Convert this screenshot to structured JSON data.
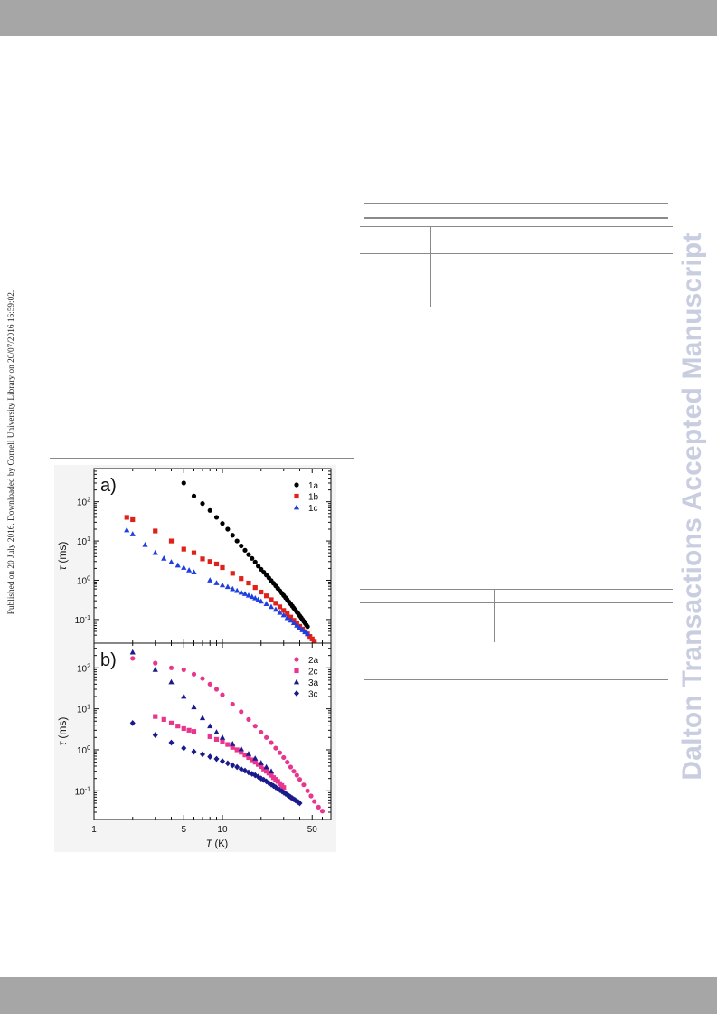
{
  "sidebar_text": "Published on 20 July 2016. Downloaded by Cornell University Library on 20/07/2016 16:59:02.",
  "watermark": "Dalton Transactions Accepted Manuscript",
  "chart_data": [
    {
      "type": "scatter",
      "panel_label": "a)",
      "xlabel": "T (K)",
      "ylabel": "τ (ms)",
      "x_scale": "log",
      "y_scale": "log",
      "xlim": [
        1,
        70
      ],
      "ylim": [
        0.025,
        700
      ],
      "x_ticks": [
        "1",
        "5",
        "10",
        "50"
      ],
      "y_ticks": [
        "10-1",
        "100",
        "101",
        "102"
      ],
      "legend_position": "top-right",
      "series": [
        {
          "name": "1a",
          "color": "#000000",
          "marker": "circle",
          "points": [
            [
              5,
              300
            ],
            [
              6,
              140
            ],
            [
              7,
              90
            ],
            [
              8,
              60
            ],
            [
              9,
              40
            ],
            [
              10,
              28
            ],
            [
              11,
              20
            ],
            [
              12,
              14
            ],
            [
              13,
              10
            ],
            [
              14,
              7.5
            ],
            [
              15,
              5.8
            ],
            [
              16,
              4.5
            ],
            [
              17,
              3.6
            ],
            [
              18,
              2.9
            ],
            [
              19,
              2.3
            ],
            [
              20,
              1.9
            ],
            [
              21,
              1.6
            ],
            [
              22,
              1.35
            ],
            [
              23,
              1.15
            ],
            [
              24,
              0.98
            ],
            [
              25,
              0.84
            ],
            [
              26,
              0.72
            ],
            [
              27,
              0.62
            ],
            [
              28,
              0.54
            ],
            [
              29,
              0.47
            ],
            [
              30,
              0.41
            ],
            [
              31,
              0.36
            ],
            [
              32,
              0.32
            ],
            [
              33,
              0.28
            ],
            [
              34,
              0.25
            ],
            [
              35,
              0.22
            ],
            [
              36,
              0.195
            ],
            [
              37,
              0.175
            ],
            [
              38,
              0.155
            ],
            [
              39,
              0.14
            ],
            [
              40,
              0.125
            ],
            [
              41,
              0.112
            ],
            [
              42,
              0.1
            ],
            [
              43,
              0.09
            ],
            [
              44,
              0.081
            ],
            [
              45,
              0.073
            ],
            [
              46,
              0.066
            ]
          ]
        },
        {
          "name": "1b",
          "color": "#e0201b",
          "marker": "square",
          "points": [
            [
              1.8,
              40
            ],
            [
              2,
              35
            ],
            [
              3,
              18
            ],
            [
              4,
              10
            ],
            [
              5,
              6.2
            ],
            [
              6,
              5
            ],
            [
              7,
              3.5
            ],
            [
              8,
              3
            ],
            [
              9,
              2.6
            ],
            [
              10,
              2.1
            ],
            [
              12,
              1.5
            ],
            [
              14,
              1.1
            ],
            [
              16,
              0.85
            ],
            [
              18,
              0.65
            ],
            [
              20,
              0.5
            ],
            [
              22,
              0.4
            ],
            [
              24,
              0.32
            ],
            [
              26,
              0.26
            ],
            [
              28,
              0.21
            ],
            [
              30,
              0.17
            ],
            [
              32,
              0.14
            ],
            [
              34,
              0.115
            ],
            [
              36,
              0.095
            ],
            [
              38,
              0.08
            ],
            [
              40,
              0.067
            ],
            [
              42,
              0.057
            ],
            [
              44,
              0.049
            ],
            [
              46,
              0.043
            ],
            [
              48,
              0.037
            ],
            [
              50,
              0.032
            ],
            [
              52,
              0.028
            ]
          ]
        },
        {
          "name": "1c",
          "color": "#1f3fe0",
          "marker": "triangle",
          "points": [
            [
              1.8,
              19
            ],
            [
              2,
              15
            ],
            [
              2.5,
              8
            ],
            [
              3,
              5
            ],
            [
              3.5,
              3.6
            ],
            [
              4,
              2.9
            ],
            [
              4.5,
              2.4
            ],
            [
              5,
              2.1
            ],
            [
              5.5,
              1.8
            ],
            [
              6,
              1.6
            ],
            [
              8,
              1
            ],
            [
              9,
              0.85
            ],
            [
              10,
              0.75
            ],
            [
              11,
              0.68
            ],
            [
              12,
              0.6
            ],
            [
              13,
              0.54
            ],
            [
              14,
              0.49
            ],
            [
              15,
              0.45
            ],
            [
              16,
              0.41
            ],
            [
              17,
              0.38
            ],
            [
              18,
              0.35
            ],
            [
              19,
              0.32
            ],
            [
              20,
              0.29
            ],
            [
              22,
              0.25
            ],
            [
              24,
              0.21
            ],
            [
              26,
              0.18
            ],
            [
              28,
              0.15
            ],
            [
              30,
              0.13
            ],
            [
              32,
              0.11
            ],
            [
              34,
              0.095
            ],
            [
              36,
              0.082
            ],
            [
              38,
              0.071
            ],
            [
              40,
              0.062
            ],
            [
              42,
              0.054
            ],
            [
              44,
              0.048
            ],
            [
              46,
              0.043
            ]
          ]
        }
      ]
    },
    {
      "type": "scatter",
      "panel_label": "b)",
      "xlabel": "T (K)",
      "ylabel": "τ (ms)",
      "x_scale": "log",
      "y_scale": "log",
      "xlim": [
        1,
        70
      ],
      "ylim": [
        0.02,
        400
      ],
      "x_ticks": [
        "1",
        "5",
        "10",
        "50"
      ],
      "y_ticks": [
        "10-1",
        "100",
        "101",
        "102"
      ],
      "legend_position": "top-right",
      "series": [
        {
          "name": "2a",
          "color": "#e8368f",
          "marker": "circle",
          "points": [
            [
              2,
              170
            ],
            [
              3,
              130
            ],
            [
              4,
              100
            ],
            [
              5,
              90
            ],
            [
              6,
              70
            ],
            [
              7,
              55
            ],
            [
              8,
              40
            ],
            [
              9,
              30
            ],
            [
              10,
              22
            ],
            [
              12,
              13
            ],
            [
              14,
              8.5
            ],
            [
              16,
              5.5
            ],
            [
              18,
              3.8
            ],
            [
              20,
              2.7
            ],
            [
              22,
              2
            ],
            [
              24,
              1.5
            ],
            [
              26,
              1.1
            ],
            [
              28,
              0.85
            ],
            [
              30,
              0.65
            ],
            [
              32,
              0.5
            ],
            [
              34,
              0.38
            ],
            [
              36,
              0.3
            ],
            [
              38,
              0.24
            ],
            [
              40,
              0.19
            ],
            [
              43,
              0.14
            ],
            [
              46,
              0.1
            ],
            [
              49,
              0.075
            ],
            [
              52,
              0.055
            ],
            [
              56,
              0.04
            ],
            [
              60,
              0.032
            ]
          ]
        },
        {
          "name": "2c",
          "color": "#e8368f",
          "marker": "square",
          "points": [
            [
              3,
              6.5
            ],
            [
              3.5,
              5.5
            ],
            [
              4,
              4.5
            ],
            [
              4.5,
              3.8
            ],
            [
              5,
              3.3
            ],
            [
              5.5,
              3
            ],
            [
              6,
              2.8
            ],
            [
              8,
              2.1
            ],
            [
              9,
              1.8
            ],
            [
              10,
              1.6
            ],
            [
              11,
              1.35
            ],
            [
              12,
              1.15
            ],
            [
              13,
              1
            ],
            [
              14,
              0.87
            ],
            [
              15,
              0.75
            ],
            [
              16,
              0.65
            ],
            [
              17,
              0.57
            ],
            [
              18,
              0.5
            ],
            [
              19,
              0.44
            ],
            [
              20,
              0.39
            ],
            [
              21,
              0.34
            ],
            [
              22,
              0.3
            ],
            [
              23,
              0.27
            ],
            [
              24,
              0.24
            ],
            [
              25,
              0.21
            ],
            [
              26,
              0.19
            ],
            [
              27,
              0.17
            ],
            [
              28,
              0.15
            ],
            [
              29,
              0.135
            ],
            [
              30,
              0.12
            ]
          ]
        },
        {
          "name": "3a",
          "color": "#1a1a8c",
          "marker": "triangle",
          "points": [
            [
              2,
              240
            ],
            [
              3,
              90
            ],
            [
              4,
              45
            ],
            [
              5,
              20
            ],
            [
              6,
              11
            ],
            [
              7,
              6
            ],
            [
              8,
              3.8
            ],
            [
              9,
              2.7
            ],
            [
              10,
              2
            ],
            [
              12,
              1.4
            ],
            [
              14,
              1.05
            ],
            [
              16,
              0.8
            ],
            [
              18,
              0.62
            ],
            [
              20,
              0.48
            ],
            [
              22,
              0.38
            ],
            [
              24,
              0.3
            ]
          ]
        },
        {
          "name": "3c",
          "color": "#1a1a8c",
          "marker": "diamond",
          "points": [
            [
              2,
              4.5
            ],
            [
              3,
              2.3
            ],
            [
              4,
              1.5
            ],
            [
              5,
              1.1
            ],
            [
              6,
              0.9
            ],
            [
              7,
              0.78
            ],
            [
              8,
              0.68
            ],
            [
              9,
              0.6
            ],
            [
              10,
              0.53
            ],
            [
              11,
              0.47
            ],
            [
              12,
              0.42
            ],
            [
              13,
              0.38
            ],
            [
              14,
              0.34
            ],
            [
              15,
              0.31
            ],
            [
              16,
              0.28
            ],
            [
              17,
              0.26
            ],
            [
              18,
              0.24
            ],
            [
              19,
              0.22
            ],
            [
              20,
              0.2
            ],
            [
              21,
              0.185
            ],
            [
              22,
              0.17
            ],
            [
              23,
              0.155
            ],
            [
              24,
              0.143
            ],
            [
              25,
              0.132
            ],
            [
              26,
              0.122
            ],
            [
              27,
              0.113
            ],
            [
              28,
              0.105
            ],
            [
              29,
              0.098
            ],
            [
              30,
              0.091
            ],
            [
              31,
              0.085
            ],
            [
              32,
              0.08
            ],
            [
              33,
              0.075
            ],
            [
              34,
              0.07
            ],
            [
              35,
              0.066
            ],
            [
              36,
              0.062
            ],
            [
              37,
              0.059
            ],
            [
              38,
              0.056
            ],
            [
              39,
              0.053
            ],
            [
              40,
              0.05
            ]
          ]
        }
      ]
    }
  ]
}
